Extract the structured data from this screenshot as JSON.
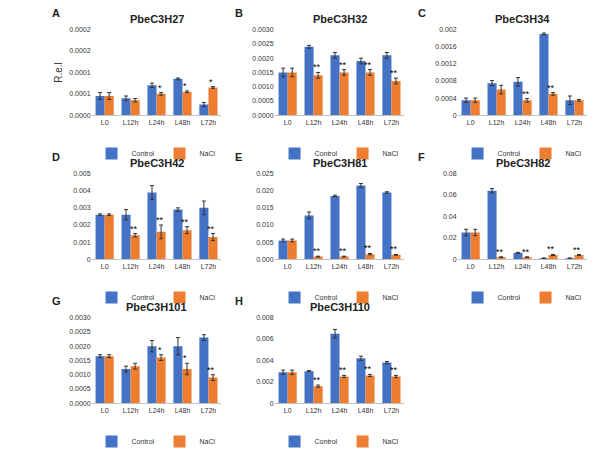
{
  "chart_data": [
    {
      "type": "bar",
      "label": "A",
      "title": "PbeC3H27",
      "ylabel": "R.e.l",
      "categories": [
        "L0",
        "L12h",
        "L24h",
        "L48h",
        "L72h"
      ],
      "series": [
        {
          "name": "Control",
          "color": "#4472c4",
          "values": [
            4.5e-05,
            4e-05,
            7e-05,
            8.5e-05,
            2.5e-05
          ],
          "errors": [
            8e-06,
            5e-06,
            5e-06,
            2e-06,
            5e-06
          ]
        },
        {
          "name": "NaCl",
          "color": "#ed7d31",
          "values": [
            4.5e-05,
            3.5e-05,
            5e-05,
            5.5e-05,
            6.5e-05
          ],
          "errors": [
            8e-06,
            4e-06,
            3e-06,
            2e-06,
            2e-06
          ]
        }
      ],
      "annotations": [
        {
          "category": "L24h",
          "series": "NaCl",
          "text": "*"
        },
        {
          "category": "L48h",
          "series": "NaCl",
          "text": "*"
        },
        {
          "category": "L72h",
          "series": "NaCl",
          "text": "*"
        }
      ],
      "ylim": [
        0,
        0.0002
      ],
      "yticks": [
        {
          "value": 0,
          "label": "0.0000"
        },
        {
          "value": 5e-05,
          "label": "0.0001"
        },
        {
          "value": 0.0001,
          "label": "0.0001"
        },
        {
          "value": 0.00015,
          "label": "0.0002"
        },
        {
          "value": 0.0002,
          "label": "0.0002"
        }
      ],
      "grid": false,
      "legend": "bottom"
    },
    {
      "type": "bar",
      "label": "B",
      "title": "PbeC3H32",
      "categories": [
        "L0",
        "L12h",
        "L24h",
        "L48h",
        "L72h"
      ],
      "series": [
        {
          "name": "Control",
          "color": "#4472c4",
          "values": [
            0.0015,
            0.0024,
            0.0021,
            0.0019,
            0.0021
          ],
          "errors": [
            0.00015,
            5e-05,
            0.0001,
            0.0001,
            0.0001
          ]
        },
        {
          "name": "NaCl",
          "color": "#ed7d31",
          "values": [
            0.0015,
            0.0014,
            0.0015,
            0.0015,
            0.0012
          ],
          "errors": [
            0.00015,
            0.0001,
            0.0001,
            0.0001,
            0.0001
          ]
        }
      ],
      "annotations": [
        {
          "category": "L12h",
          "series": "NaCl",
          "text": "**"
        },
        {
          "category": "L24h",
          "series": "NaCl",
          "text": "**"
        },
        {
          "category": "L48h",
          "series": "NaCl",
          "text": "**"
        },
        {
          "category": "L72h",
          "series": "NaCl",
          "text": "**"
        }
      ],
      "ylim": [
        0,
        0.003
      ],
      "yticks": [
        {
          "value": 0,
          "label": "0.0000"
        },
        {
          "value": 0.0005,
          "label": "0.0005"
        },
        {
          "value": 0.001,
          "label": "0.0010"
        },
        {
          "value": 0.0015,
          "label": "0.0015"
        },
        {
          "value": 0.002,
          "label": "0.0020"
        },
        {
          "value": 0.0025,
          "label": "0.0025"
        },
        {
          "value": 0.003,
          "label": "0.0030"
        }
      ],
      "grid": false,
      "legend": "bottom"
    },
    {
      "type": "bar",
      "label": "C",
      "title": "PbeC3H34",
      "categories": [
        "L0",
        "L12h",
        "L24h",
        "L48h",
        "L72h"
      ],
      "series": [
        {
          "name": "Control",
          "color": "#4472c4",
          "values": [
            0.00035,
            0.00075,
            0.00078,
            0.0019,
            0.00035
          ],
          "errors": [
            5e-05,
            6e-05,
            0.0001,
            2e-05,
            0.0001
          ]
        },
        {
          "name": "NaCl",
          "color": "#ed7d31",
          "values": [
            0.00035,
            0.0006,
            0.00035,
            0.0005,
            0.00035
          ],
          "errors": [
            5e-05,
            0.0001,
            4e-05,
            3e-05,
            2e-05
          ]
        }
      ],
      "annotations": [
        {
          "category": "L24h",
          "series": "NaCl",
          "text": "**"
        },
        {
          "category": "L48h",
          "series": "NaCl",
          "text": "**"
        }
      ],
      "ylim": [
        0,
        0.002
      ],
      "yticks": [
        0,
        0.0004,
        0.0008,
        0.0012,
        0.0016,
        0.002
      ],
      "grid": false,
      "legend": "bottom"
    },
    {
      "type": "bar",
      "label": "D",
      "title": "PbeC3H42",
      "categories": [
        "L0",
        "L12h",
        "L24h",
        "L48h",
        "L72h"
      ],
      "series": [
        {
          "name": "Control",
          "color": "#4472c4",
          "values": [
            0.0026,
            0.0026,
            0.0039,
            0.0029,
            0.003
          ],
          "errors": [
            5e-05,
            0.0003,
            0.0004,
            0.0001,
            0.0004
          ]
        },
        {
          "name": "NaCl",
          "color": "#ed7d31",
          "values": [
            0.0026,
            0.0014,
            0.0016,
            0.0017,
            0.0013
          ],
          "errors": [
            5e-05,
            0.0001,
            0.0004,
            0.0002,
            0.0002
          ]
        }
      ],
      "annotations": [
        {
          "category": "L12h",
          "series": "NaCl",
          "text": "**"
        },
        {
          "category": "L24h",
          "series": "NaCl",
          "text": "**"
        },
        {
          "category": "L48h",
          "series": "NaCl",
          "text": "**"
        },
        {
          "category": "L72h",
          "series": "NaCl",
          "text": "**"
        }
      ],
      "ylim": [
        0,
        0.005
      ],
      "yticks": [
        0,
        0.001,
        0.002,
        0.003,
        0.004,
        0.005
      ],
      "grid": false,
      "legend": "bottom"
    },
    {
      "type": "bar",
      "label": "E",
      "title": "PbeC3H81",
      "categories": [
        "L0",
        "L12h",
        "L24h",
        "L48h",
        "L72h"
      ],
      "series": [
        {
          "name": "Control",
          "color": "#4472c4",
          "values": [
            0.0055,
            0.0128,
            0.0185,
            0.0215,
            0.0195
          ],
          "errors": [
            0.0004,
            0.001,
            0.0002,
            0.0006,
            0.0002
          ]
        },
        {
          "name": "NaCl",
          "color": "#ed7d31",
          "values": [
            0.0055,
            0.0008,
            0.0008,
            0.0015,
            0.0013
          ],
          "errors": [
            0.0004,
            0.0001,
            0.0001,
            0.0002,
            0.0001
          ]
        }
      ],
      "annotations": [
        {
          "category": "L12h",
          "series": "NaCl",
          "text": "**"
        },
        {
          "category": "L24h",
          "series": "NaCl",
          "text": "**"
        },
        {
          "category": "L48h",
          "series": "NaCl",
          "text": "**"
        },
        {
          "category": "L72h",
          "series": "NaCl",
          "text": "**"
        }
      ],
      "ylim": [
        0,
        0.025
      ],
      "yticks": [
        {
          "value": 0,
          "label": "0.000"
        },
        {
          "value": 0.005,
          "label": "0.005"
        },
        {
          "value": 0.01,
          "label": "0.010"
        },
        {
          "value": 0.015,
          "label": "0.015"
        },
        {
          "value": 0.02,
          "label": "0.020"
        },
        {
          "value": 0.025,
          "label": "0.025"
        }
      ],
      "grid": false,
      "legend": "bottom"
    },
    {
      "type": "bar",
      "label": "F",
      "title": "PbeC3H82",
      "categories": [
        "L0",
        "L12h",
        "L24h",
        "L48h",
        "L72h"
      ],
      "series": [
        {
          "name": "Control",
          "color": "#4472c4",
          "values": [
            0.025,
            0.064,
            0.006,
            0.001,
            0.001
          ],
          "errors": [
            0.003,
            0.002,
            0.0005,
            0.0002,
            0.0002
          ]
        },
        {
          "name": "NaCl",
          "color": "#ed7d31",
          "values": [
            0.025,
            0.002,
            0.002,
            0.004,
            0.004
          ],
          "errors": [
            0.003,
            0.0003,
            0.0003,
            0.0005,
            0.0004
          ]
        }
      ],
      "annotations": [
        {
          "category": "L12h",
          "series": "NaCl",
          "text": "**"
        },
        {
          "category": "L24h",
          "series": "NaCl",
          "text": "**"
        },
        {
          "category": "L48h",
          "series": "NaCl",
          "text": "**"
        },
        {
          "category": "L72h",
          "series": "NaCl",
          "text": "**"
        }
      ],
      "ylim": [
        0,
        0.08
      ],
      "yticks": [
        0,
        0.02,
        0.04,
        0.06,
        0.08
      ],
      "grid": false,
      "legend": "bottom"
    },
    {
      "type": "bar",
      "label": "G",
      "title": "PbeC3H101",
      "categories": [
        "L0",
        "L12h",
        "L24h",
        "L48h",
        "L72h"
      ],
      "series": [
        {
          "name": "Control",
          "color": "#4472c4",
          "values": [
            0.00165,
            0.0012,
            0.002,
            0.002,
            0.0023
          ],
          "errors": [
            5e-05,
            0.0001,
            0.0002,
            0.0003,
            0.0001
          ]
        },
        {
          "name": "NaCl",
          "color": "#ed7d31",
          "values": [
            0.00165,
            0.0013,
            0.0016,
            0.0012,
            0.0009
          ],
          "errors": [
            5e-05,
            0.0001,
            0.0001,
            0.0002,
            0.0001
          ]
        }
      ],
      "annotations": [
        {
          "category": "L24h",
          "series": "NaCl",
          "text": "*"
        },
        {
          "category": "L48h",
          "series": "NaCl",
          "text": "*"
        },
        {
          "category": "L72h",
          "series": "NaCl",
          "text": "**"
        }
      ],
      "ylim": [
        0,
        0.003
      ],
      "yticks": [
        {
          "value": 0,
          "label": "0.0000"
        },
        {
          "value": 0.0005,
          "label": "0.0005"
        },
        {
          "value": 0.001,
          "label": "0.0010"
        },
        {
          "value": 0.0015,
          "label": "0.0015"
        },
        {
          "value": 0.002,
          "label": "0.0020"
        },
        {
          "value": 0.0025,
          "label": "0.0025"
        },
        {
          "value": 0.003,
          "label": "0.0030"
        }
      ],
      "grid": false,
      "legend": "bottom"
    },
    {
      "type": "bar",
      "label": "H",
      "title": "PbeC3H110",
      "categories": [
        "L0",
        "L12h",
        "L24h",
        "L48h",
        "L72h"
      ],
      "series": [
        {
          "name": "Control",
          "color": "#4472c4",
          "values": [
            0.0029,
            0.003,
            0.0065,
            0.0042,
            0.0038
          ],
          "errors": [
            0.0002,
            5e-05,
            0.0004,
            0.0002,
            0.0001
          ]
        },
        {
          "name": "NaCl",
          "color": "#ed7d31",
          "values": [
            0.0029,
            0.0016,
            0.0025,
            0.0026,
            0.0025
          ],
          "errors": [
            0.0002,
            0.0001,
            0.0001,
            0.0001,
            0.0001
          ]
        }
      ],
      "annotations": [
        {
          "category": "L12h",
          "series": "NaCl",
          "text": "**"
        },
        {
          "category": "L24h",
          "series": "NaCl",
          "text": "**"
        },
        {
          "category": "L48h",
          "series": "NaCl",
          "text": "**"
        },
        {
          "category": "L72h",
          "series": "NaCl",
          "text": "**"
        }
      ],
      "ylim": [
        0,
        0.008
      ],
      "yticks": [
        0,
        0.002,
        0.004,
        0.006,
        0.008
      ],
      "grid": false,
      "legend": "bottom"
    }
  ]
}
